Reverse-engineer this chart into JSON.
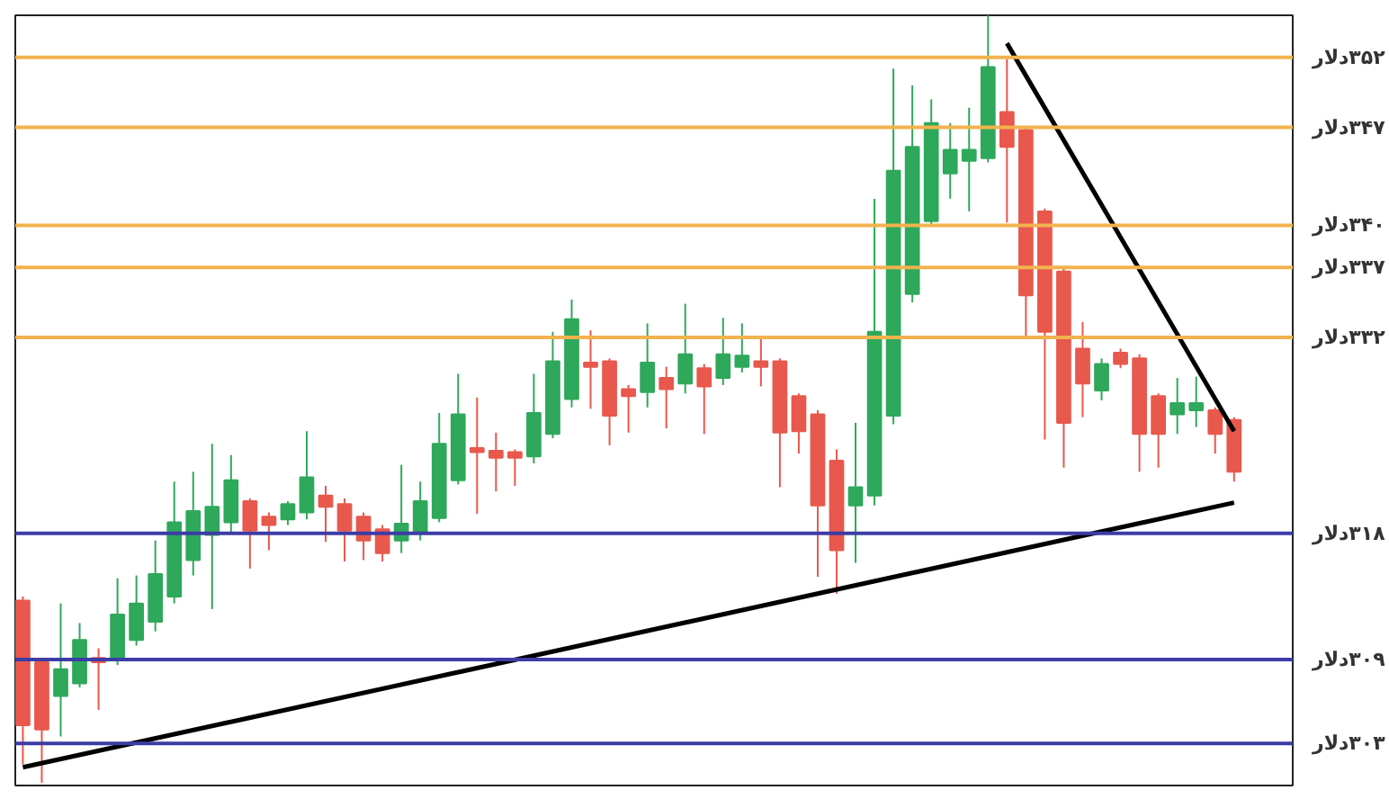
{
  "chart_data": {
    "type": "candlestick",
    "categories": [
      null,
      null,
      null,
      null,
      null,
      null,
      null,
      null,
      null,
      null,
      null,
      null,
      null,
      null,
      null,
      null,
      null,
      null,
      null,
      null,
      null,
      null,
      null,
      null,
      null,
      null,
      null,
      null,
      null,
      null,
      null,
      null,
      null,
      null,
      null,
      null,
      null,
      null,
      null,
      null,
      null,
      null,
      null,
      null,
      null,
      null,
      null,
      null,
      null,
      null,
      null,
      null,
      null,
      null,
      null,
      null,
      null,
      null,
      null,
      null,
      null,
      null,
      null,
      null,
      null
    ],
    "ohlc": [
      [
        313.2,
        313.5,
        301.5,
        304.3
      ],
      [
        308.8,
        309.0,
        300.2,
        304.0
      ],
      [
        306.4,
        313.0,
        303.5,
        308.3
      ],
      [
        307.3,
        311.6,
        307.0,
        310.4
      ],
      [
        309.1,
        309.8,
        305.4,
        308.8
      ],
      [
        309.0,
        314.8,
        308.6,
        312.2
      ],
      [
        310.4,
        315.0,
        310.0,
        313.0
      ],
      [
        311.7,
        317.5,
        311.0,
        315.1
      ],
      [
        313.5,
        321.7,
        313.0,
        318.8
      ],
      [
        316.1,
        322.4,
        315.0,
        319.6
      ],
      [
        317.9,
        324.4,
        312.6,
        319.9
      ],
      [
        318.8,
        323.6,
        318.0,
        321.8
      ],
      [
        320.3,
        320.5,
        315.5,
        318.2
      ],
      [
        319.2,
        319.5,
        316.8,
        318.6
      ],
      [
        319.0,
        320.3,
        318.6,
        320.1
      ],
      [
        319.5,
        325.3,
        319.0,
        322.0
      ],
      [
        320.7,
        321.4,
        317.4,
        319.9
      ],
      [
        320.1,
        320.5,
        316.0,
        318.2
      ],
      [
        319.2,
        319.5,
        316.1,
        317.5
      ],
      [
        318.3,
        318.6,
        316.0,
        316.6
      ],
      [
        317.5,
        322.9,
        316.6,
        318.7
      ],
      [
        318.1,
        321.7,
        317.5,
        320.3
      ],
      [
        319.1,
        326.6,
        318.8,
        324.4
      ],
      [
        321.8,
        329.4,
        321.5,
        326.5
      ],
      [
        324.1,
        327.7,
        319.4,
        323.8
      ],
      [
        323.9,
        325.2,
        321.0,
        323.4
      ],
      [
        323.8,
        324.0,
        321.4,
        323.4
      ],
      [
        323.5,
        329.4,
        323.0,
        326.6
      ],
      [
        325.1,
        332.4,
        324.8,
        330.3
      ],
      [
        327.6,
        334.7,
        327.0,
        333.3
      ],
      [
        330.2,
        332.5,
        326.9,
        329.9
      ],
      [
        330.3,
        330.5,
        324.3,
        326.4
      ],
      [
        328.3,
        328.6,
        325.2,
        327.8
      ],
      [
        328.1,
        333.0,
        327.0,
        330.2
      ],
      [
        329.1,
        329.9,
        325.5,
        328.3
      ],
      [
        328.7,
        334.4,
        328.0,
        330.8
      ],
      [
        329.8,
        330.1,
        325.1,
        328.5
      ],
      [
        329.1,
        333.4,
        328.6,
        330.8
      ],
      [
        329.9,
        333.0,
        329.5,
        330.7
      ],
      [
        330.3,
        331.9,
        328.5,
        329.9
      ],
      [
        330.3,
        330.5,
        321.3,
        325.2
      ],
      [
        327.8,
        328.0,
        323.7,
        325.3
      ],
      [
        326.5,
        326.8,
        314.9,
        320.0
      ],
      [
        323.2,
        324.0,
        313.7,
        316.8
      ],
      [
        320.0,
        325.9,
        315.9,
        321.3
      ],
      [
        320.7,
        341.9,
        320.0,
        332.4
      ],
      [
        326.4,
        351.2,
        325.8,
        343.9
      ],
      [
        335.1,
        350.0,
        334.5,
        345.6
      ],
      [
        340.3,
        349.0,
        340.0,
        347.3
      ],
      [
        343.7,
        347.3,
        341.9,
        345.4
      ],
      [
        344.6,
        348.4,
        341.0,
        345.4
      ],
      [
        344.8,
        355.0,
        344.5,
        351.3
      ],
      [
        348.1,
        351.9,
        340.2,
        345.6
      ],
      [
        346.8,
        347.0,
        332.1,
        335.0
      ],
      [
        341.0,
        341.2,
        324.7,
        332.4
      ],
      [
        336.7,
        337.0,
        322.7,
        325.9
      ],
      [
        331.2,
        333.1,
        326.3,
        328.7
      ],
      [
        328.2,
        330.5,
        327.5,
        330.1
      ],
      [
        330.9,
        331.2,
        329.8,
        330.1
      ],
      [
        330.5,
        330.8,
        322.4,
        325.1
      ],
      [
        327.8,
        328.0,
        322.7,
        325.1
      ],
      [
        326.5,
        329.1,
        325.1,
        327.3
      ],
      [
        326.8,
        329.2,
        325.6,
        327.3
      ],
      [
        326.8,
        327.0,
        323.7,
        325.1
      ],
      [
        326.1,
        326.3,
        321.7,
        322.4
      ]
    ],
    "colors": [
      "#e8584c",
      "#e8584c",
      "#2ea85a",
      "#2ea85a",
      "#e8584c",
      "#2ea85a",
      "#2ea85a",
      "#2ea85a",
      "#2ea85a",
      "#2ea85a",
      "#2ea85a",
      "#2ea85a",
      "#e8584c",
      "#e8584c",
      "#2ea85a",
      "#2ea85a",
      "#e8584c",
      "#e8584c",
      "#e8584c",
      "#e8584c",
      "#2ea85a",
      "#2ea85a",
      "#2ea85a",
      "#2ea85a",
      "#e8584c",
      "#e8584c",
      "#e8584c",
      "#2ea85a",
      "#2ea85a",
      "#2ea85a",
      "#e8584c",
      "#e8584c",
      "#e8584c",
      "#2ea85a",
      "#e8584c",
      "#2ea85a",
      "#e8584c",
      "#2ea85a",
      "#2ea85a",
      "#e8584c",
      "#e8584c",
      "#e8584c",
      "#e8584c",
      "#e8584c",
      "#2ea85a",
      "#2ea85a",
      "#2ea85a",
      "#2ea85a",
      "#2ea85a",
      "#2ea85a",
      "#2ea85a",
      "#2ea85a",
      "#e8584c",
      "#e8584c",
      "#e8584c",
      "#e8584c",
      "#e8584c",
      "#2ea85a",
      "#e8584c",
      "#e8584c",
      "#e8584c",
      "#2ea85a",
      "#2ea85a",
      "#e8584c",
      "#e8584c"
    ],
    "series": [
      {
        "type": "line",
        "color": "#000000",
        "values": [
          301.3,
          null,
          null,
          null,
          null,
          null,
          null,
          null,
          null,
          null,
          null,
          null,
          null,
          null,
          null,
          null,
          null,
          null,
          null,
          null,
          null,
          null,
          null,
          null,
          null,
          null,
          null,
          null,
          null,
          null,
          null,
          null,
          null,
          null,
          null,
          null,
          null,
          null,
          null,
          null,
          null,
          null,
          null,
          null,
          null,
          null,
          null,
          null,
          null,
          null,
          null,
          null,
          null,
          null,
          null,
          null,
          null,
          null,
          null,
          null,
          null,
          null,
          null,
          null,
          320.2
        ]
      },
      {
        "type": "line",
        "color": "#000000",
        "values": [
          null,
          null,
          null,
          null,
          null,
          null,
          null,
          null,
          null,
          null,
          null,
          null,
          null,
          null,
          null,
          null,
          null,
          null,
          null,
          null,
          null,
          null,
          null,
          null,
          null,
          null,
          null,
          null,
          null,
          null,
          null,
          null,
          null,
          null,
          null,
          null,
          null,
          null,
          null,
          null,
          null,
          null,
          null,
          null,
          null,
          null,
          null,
          null,
          null,
          null,
          null,
          null,
          353.0,
          null,
          null,
          null,
          null,
          null,
          null,
          null,
          null,
          null,
          null,
          null,
          325.3
        ]
      }
    ],
    "ylim": [
      300,
      355
    ],
    "ref_lines": [
      {
        "axis": "y",
        "value": 352,
        "label": "۳۵۲دلار",
        "color": "#f2b24e"
      },
      {
        "axis": "y",
        "value": 347,
        "label": "۳۴۷دلار",
        "color": "#f2b24e"
      },
      {
        "axis": "y",
        "value": 340,
        "label": "۳۴۰دلار",
        "color": "#f2b24e"
      },
      {
        "axis": "y",
        "value": 337,
        "label": "۳۳۷دلار",
        "color": "#f2b24e"
      },
      {
        "axis": "y",
        "value": 332,
        "label": "۳۳۲دلار",
        "color": "#f2b24e"
      },
      {
        "axis": "y",
        "value": 318,
        "label": "۳۱۸دلار",
        "color": "#3c3ca6"
      },
      {
        "axis": "y",
        "value": 309,
        "label": "۳۰۹دلار",
        "color": "#3c3ca6"
      },
      {
        "axis": "y",
        "value": 303,
        "label": "۳۰۳دلار",
        "color": "#3c3ca6"
      }
    ]
  }
}
